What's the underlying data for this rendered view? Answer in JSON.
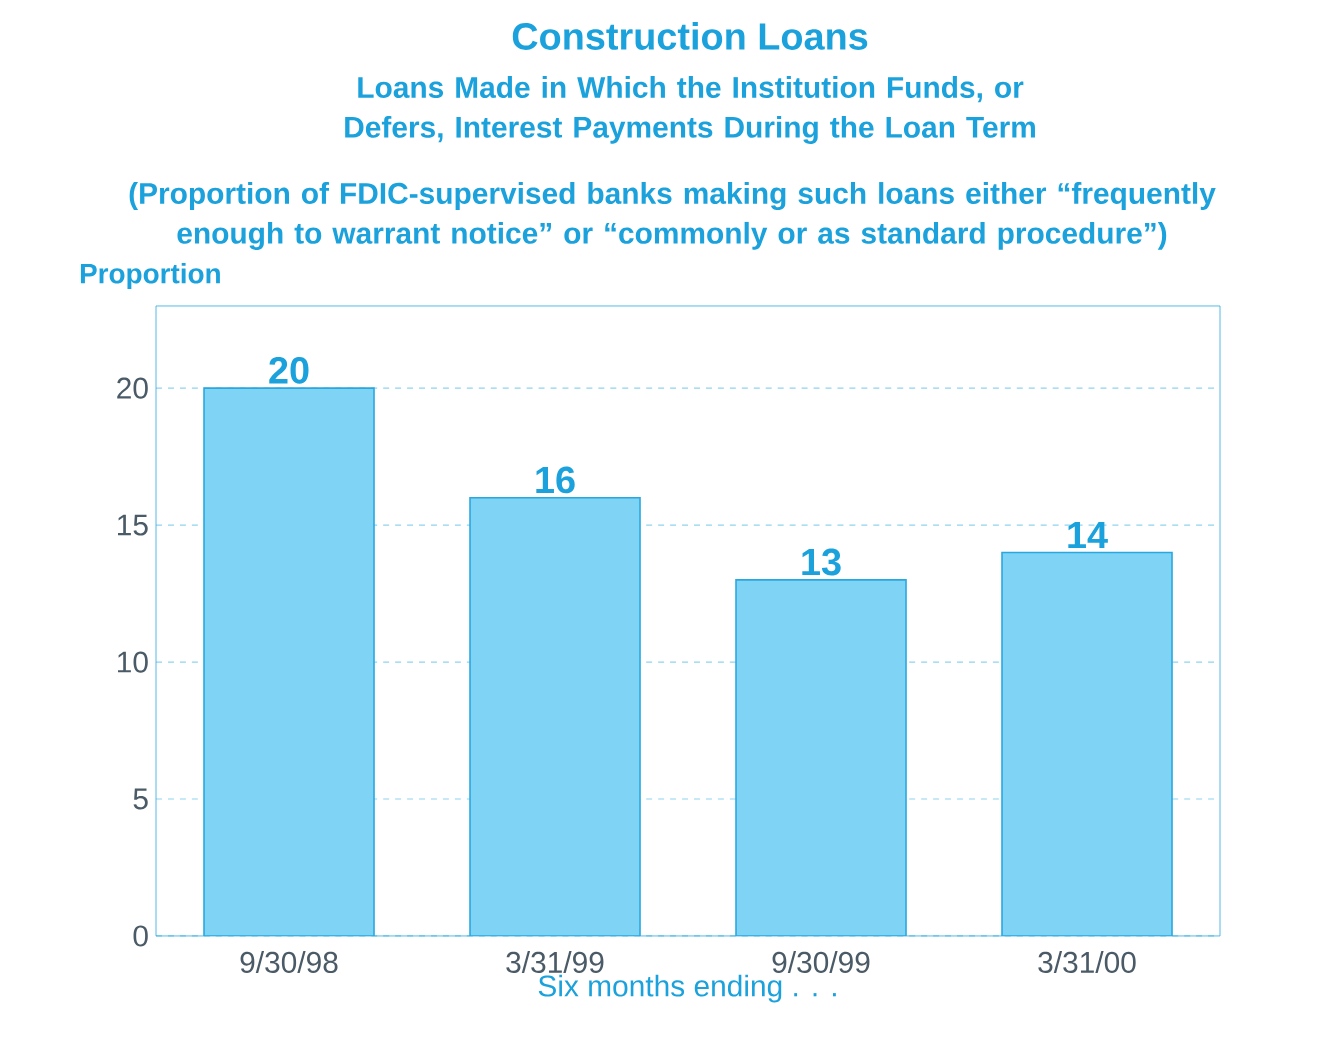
{
  "chart_data": {
    "type": "bar",
    "title": "Construction Loans",
    "subtitle": "Loans Made in Which the Institution Funds, or Defers, Interest Payments During the Loan Term",
    "annotations": [
      "(Proportion of FDIC-supervised banks making such loans either “frequently enough to warrant notice” or “commonly or as standard procedure”)"
    ],
    "ylabel": "Proportion",
    "xlabel": "Six months ending . . .",
    "categories": [
      "9/30/98",
      "3/31/99",
      "9/30/99",
      "3/31/00"
    ],
    "values": [
      20,
      16,
      13,
      14
    ],
    "color": "#7fd3f5",
    "ylim": [
      0,
      23
    ],
    "yticks": [
      0,
      5,
      10,
      15,
      20
    ],
    "grid": "y",
    "data_labels": true
  }
}
